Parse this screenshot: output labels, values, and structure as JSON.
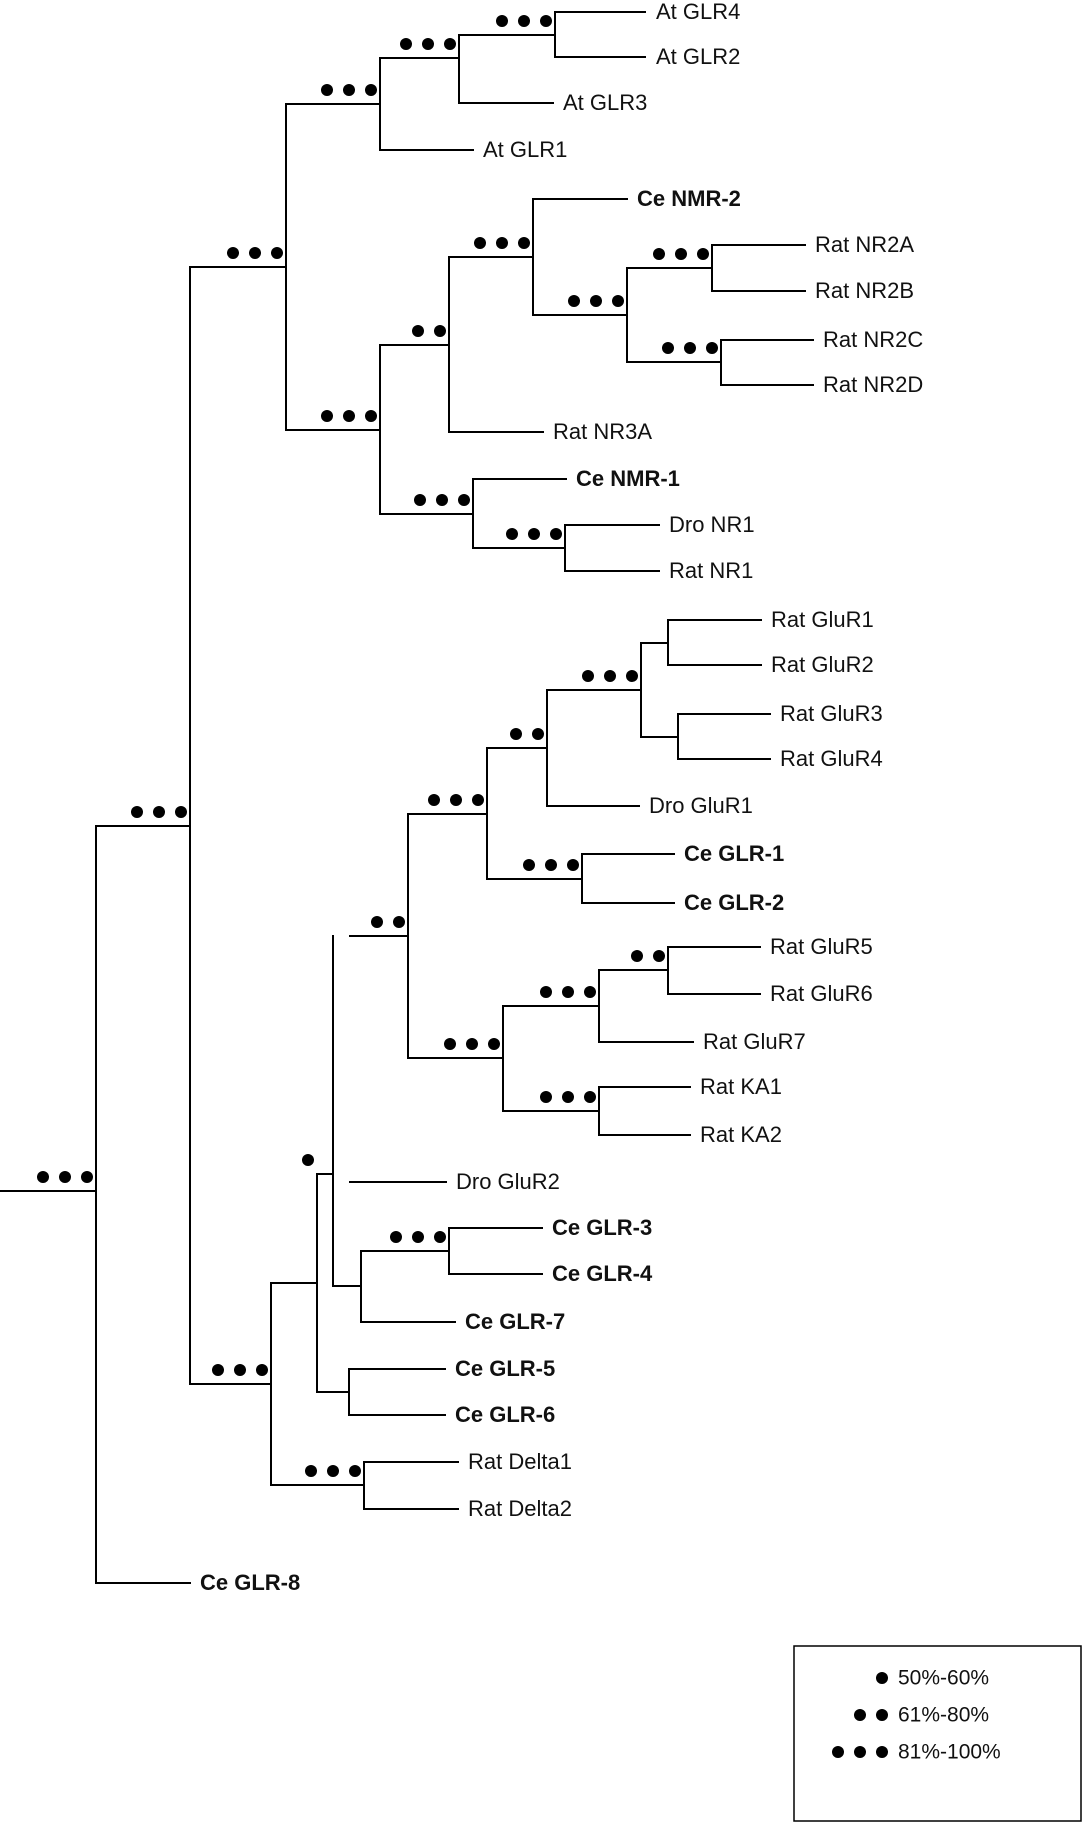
{
  "colors": {
    "default": "#111111",
    "nmr": "#1e8c1e",
    "glr": "#d01818"
  },
  "taxa": {
    "at_glr4": {
      "label": "At GLR4",
      "color": "default"
    },
    "at_glr2": {
      "label": "At GLR2",
      "color": "default"
    },
    "at_glr3": {
      "label": "At GLR3",
      "color": "default"
    },
    "at_glr1": {
      "label": "At GLR1",
      "color": "default"
    },
    "ce_nmr2": {
      "label": "Ce NMR-2",
      "color": "nmr"
    },
    "rat_nr2a": {
      "label": "Rat NR2A",
      "color": "default"
    },
    "rat_nr2b": {
      "label": "Rat NR2B",
      "color": "default"
    },
    "rat_nr2c": {
      "label": "Rat NR2C",
      "color": "default"
    },
    "rat_nr2d": {
      "label": "Rat NR2D",
      "color": "default"
    },
    "rat_nr3a": {
      "label": "Rat NR3A",
      "color": "default"
    },
    "ce_nmr1": {
      "label": "Ce NMR-1",
      "color": "nmr"
    },
    "dro_nr1": {
      "label": "Dro NR1",
      "color": "default"
    },
    "rat_nr1": {
      "label": "Rat NR1",
      "color": "default"
    },
    "rat_glur1": {
      "label": "Rat GluR1",
      "color": "default"
    },
    "rat_glur2": {
      "label": "Rat GluR2",
      "color": "default"
    },
    "rat_glur3": {
      "label": "Rat GluR3",
      "color": "default"
    },
    "rat_glur4": {
      "label": "Rat GluR4",
      "color": "default"
    },
    "dro_glur1": {
      "label": "Dro GluR1",
      "color": "default"
    },
    "ce_glr1": {
      "label": "Ce GLR-1",
      "color": "glr"
    },
    "ce_glr2": {
      "label": "Ce GLR-2",
      "color": "glr"
    },
    "rat_glur5": {
      "label": "Rat GluR5",
      "color": "default"
    },
    "rat_glur6": {
      "label": "Rat GluR6",
      "color": "default"
    },
    "rat_glur7": {
      "label": "Rat GluR7",
      "color": "default"
    },
    "rat_ka1": {
      "label": "Rat KA1",
      "color": "default"
    },
    "rat_ka2": {
      "label": "Rat KA2",
      "color": "default"
    },
    "dro_glur2": {
      "label": "Dro GluR2",
      "color": "default"
    },
    "ce_glr3": {
      "label": "Ce GLR-3",
      "color": "glr"
    },
    "ce_glr4": {
      "label": "Ce GLR-4",
      "color": "glr"
    },
    "ce_glr7": {
      "label": "Ce GLR-7",
      "color": "glr"
    },
    "ce_glr5": {
      "label": "Ce GLR-5",
      "color": "glr"
    },
    "ce_glr6": {
      "label": "Ce GLR-6",
      "color": "glr"
    },
    "rat_delta1": {
      "label": "Rat Delta1",
      "color": "default"
    },
    "rat_delta2": {
      "label": "Rat Delta2",
      "color": "default"
    },
    "ce_glr8": {
      "label": "Ce GLR-8",
      "color": "glr"
    }
  },
  "bootstrap": {
    "n_at_glr42": 3,
    "n_at_glr423": 3,
    "n_at": 3,
    "n_plant_nmda": 3,
    "n_nr2ab": 3,
    "n_nr2cd": 3,
    "n_nr2abcd": 3,
    "n_nmr2_nr2": 3,
    "n_nr2_nr3": 2,
    "n_nr1_dro_rat": 3,
    "n_nr1": 3,
    "n_nmda": 3,
    "n_ampa_vert": 3,
    "n_ampa": 2,
    "n_glr12": 3,
    "n_ampa_glr": 3,
    "n_glur56": 2,
    "n_glur567": 3,
    "n_ka12": 3,
    "n_kainate": 3,
    "n_non_nmda": 2,
    "n_glr34": 3,
    "n_clade_a": 1,
    "n_delta": 3,
    "n_non_plant": 3,
    "n_ingroup": 3,
    "n_root": 3
  },
  "legend": {
    "items": [
      {
        "dots": 1,
        "label": "50%-60%"
      },
      {
        "dots": 2,
        "label": "61%-80%"
      },
      {
        "dots": 3,
        "label": "81%-100%"
      }
    ]
  }
}
